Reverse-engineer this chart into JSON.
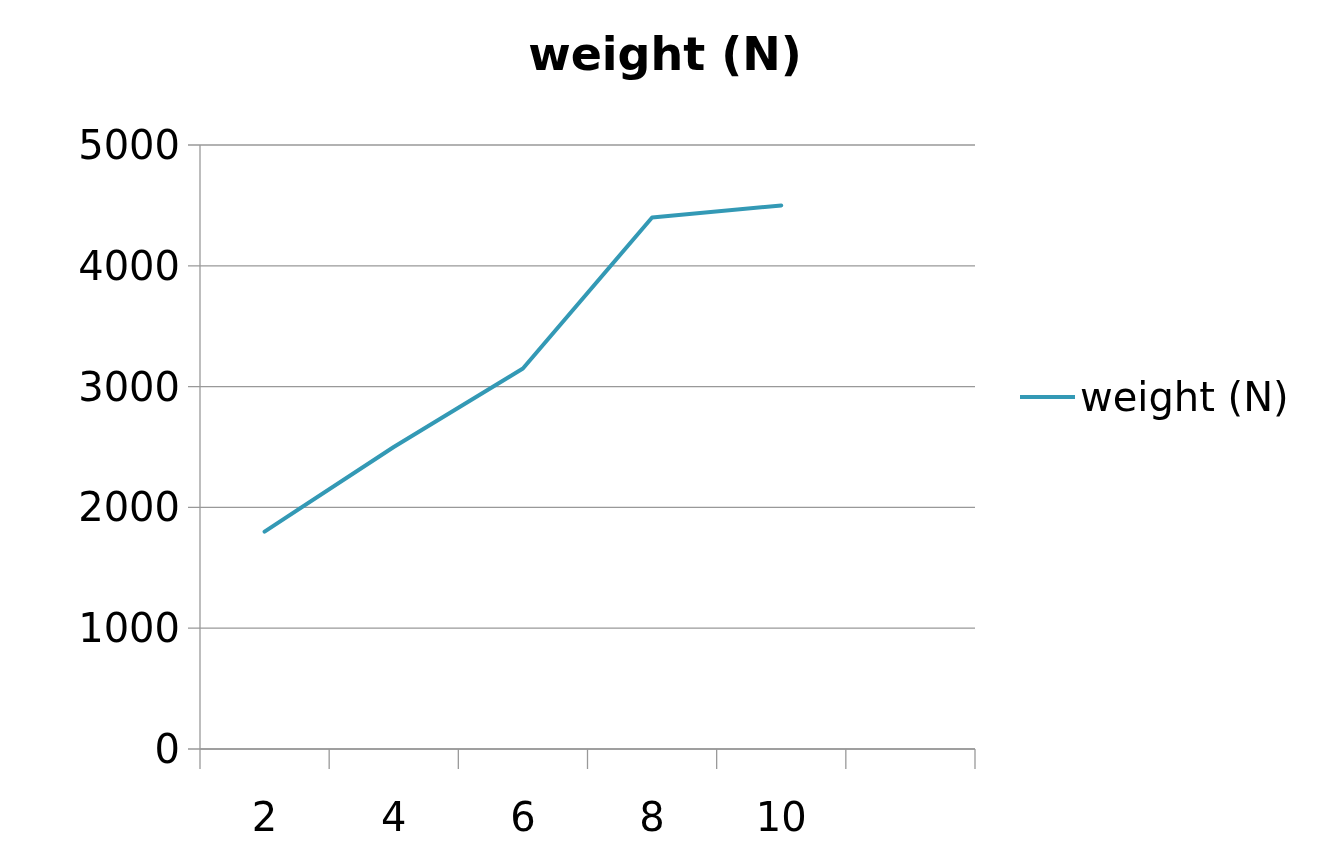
{
  "chart_data": {
    "type": "line",
    "title": "weight (N)",
    "categories": [
      "2",
      "4",
      "6",
      "8",
      "10",
      null
    ],
    "series": [
      {
        "name": "weight (N)",
        "color": "#3399b5",
        "values": [
          1800,
          2500,
          3150,
          4400,
          4500,
          null
        ]
      }
    ],
    "ylim": [
      0,
      5000
    ],
    "yticks": [
      0,
      1000,
      2000,
      3000,
      4000,
      5000
    ],
    "grid": "y",
    "legend": "right",
    "marker": "none"
  }
}
